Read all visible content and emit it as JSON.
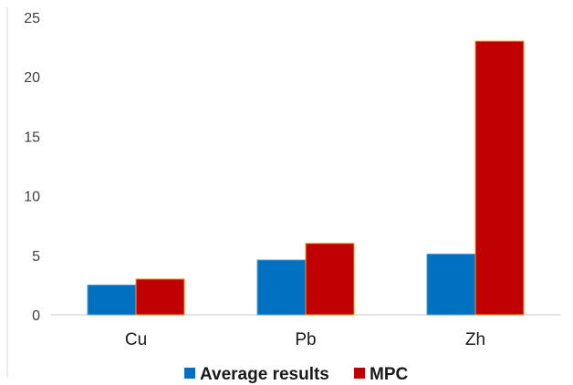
{
  "chart_data": {
    "type": "bar",
    "title": "",
    "xlabel": "",
    "ylabel": "",
    "categories": [
      "Cu",
      "Pb",
      "Zh"
    ],
    "series": [
      {
        "name": "Average results",
        "values": [
          2.5,
          4.6,
          5.1
        ],
        "color": "#0070C0",
        "stroke": "#5b9bd5"
      },
      {
        "name": "MPC",
        "values": [
          3.0,
          6.0,
          23.0
        ],
        "color": "#C00000",
        "stroke": "#ed9c28"
      }
    ],
    "ylim": [
      0,
      25
    ],
    "yticks": [
      "0",
      "5",
      "10",
      "15",
      "20",
      "25"
    ],
    "ytick_values": [
      0,
      5,
      10,
      15,
      20,
      25
    ],
    "grid": false,
    "legend_position": "bottom",
    "axis_color": "#d9d9d9"
  }
}
